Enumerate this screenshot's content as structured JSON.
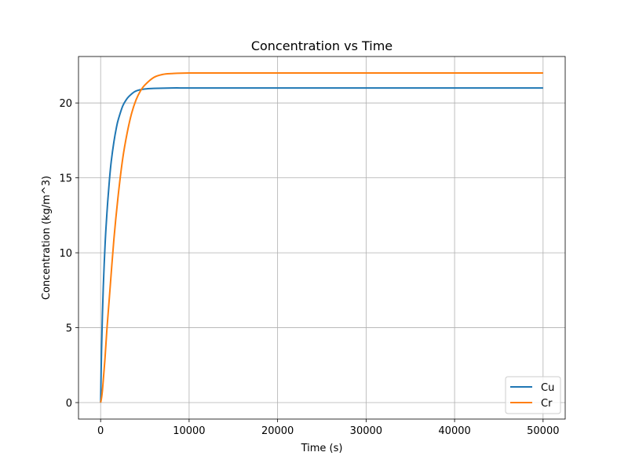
{
  "chart_data": {
    "type": "line",
    "title": "Concentration vs Time",
    "xlabel": "Time (s)",
    "ylabel": "Concentration (kg/m^3)",
    "xlim": [
      -2500,
      52500
    ],
    "ylim": [
      -1.1,
      23.1
    ],
    "xticks": [
      0,
      10000,
      20000,
      30000,
      40000,
      50000
    ],
    "yticks": [
      0,
      5,
      10,
      15,
      20
    ],
    "grid": true,
    "legend_position": "lower-right",
    "series": [
      {
        "name": "Cu",
        "color": "#1f77b4",
        "x": [
          0,
          100,
          200,
          300,
          400,
          500,
          600,
          800,
          1000,
          1200,
          1500,
          1800,
          2000,
          2500,
          3000,
          3500,
          4000,
          5000,
          6000,
          8000,
          10000,
          15000,
          20000,
          30000,
          40000,
          50000
        ],
        "y": [
          0,
          3.4,
          5.8,
          7.7,
          9.2,
          10.5,
          11.6,
          13.4,
          14.9,
          16.1,
          17.4,
          18.4,
          18.9,
          19.8,
          20.3,
          20.6,
          20.8,
          20.93,
          20.97,
          21.0,
          21.0,
          21.0,
          21.0,
          21.0,
          21.0,
          21.0
        ]
      },
      {
        "name": "Cr",
        "color": "#ff7f0e",
        "x": [
          0,
          100,
          200,
          300,
          500,
          700,
          1000,
          1500,
          2000,
          2500,
          3000,
          3500,
          4000,
          4500,
          5000,
          6000,
          7000,
          8000,
          10000,
          15000,
          20000,
          30000,
          40000,
          50000
        ],
        "y": [
          0,
          0.3,
          0.8,
          1.5,
          3.0,
          4.8,
          7.1,
          10.9,
          13.9,
          16.3,
          18.0,
          19.3,
          20.2,
          20.8,
          21.2,
          21.7,
          21.9,
          21.96,
          22.0,
          22.0,
          22.0,
          22.0,
          22.0,
          22.0
        ]
      }
    ]
  }
}
